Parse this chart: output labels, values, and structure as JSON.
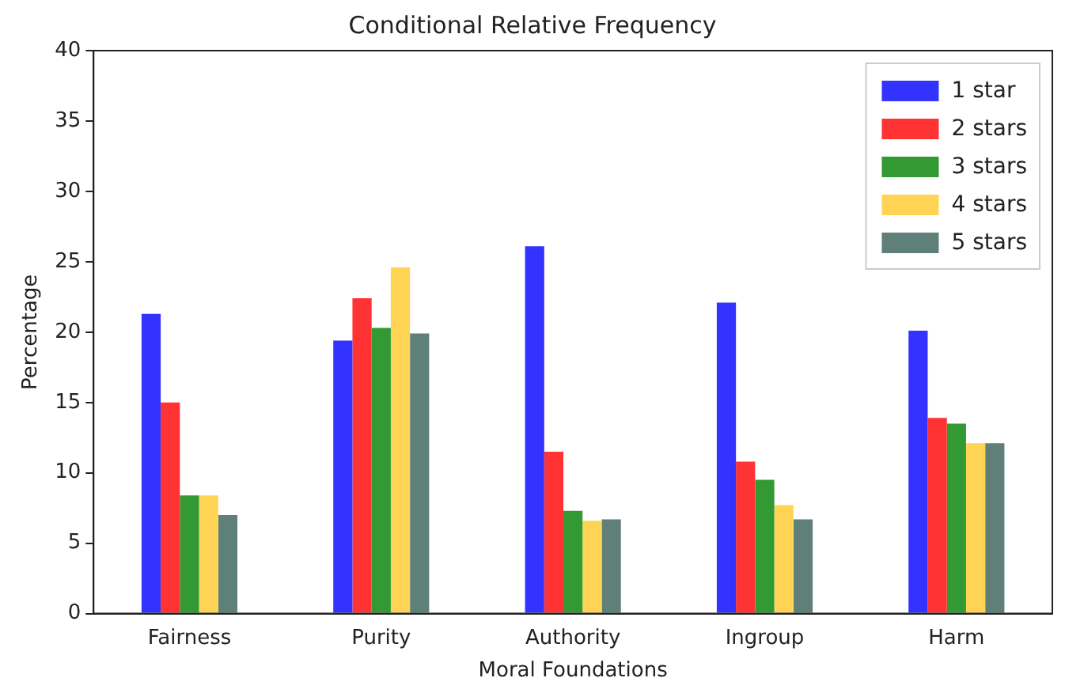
{
  "chart_data": {
    "type": "bar",
    "title": "Conditional Relative Frequency",
    "xlabel": "Moral Foundations",
    "ylabel": "Percentage",
    "categories": [
      "Fairness",
      "Purity",
      "Authority",
      "Ingroup",
      "Harm"
    ],
    "series": [
      {
        "name": "1 star",
        "color": "#3333ff",
        "values": [
          21.3,
          19.4,
          26.1,
          22.1,
          20.1
        ]
      },
      {
        "name": "2 stars",
        "color": "#ff3333",
        "values": [
          15,
          22.4,
          11.5,
          10.8,
          13.9
        ]
      },
      {
        "name": "3 stars",
        "color": "#339933",
        "values": [
          8.4,
          20.3,
          7.3,
          9.5,
          13.5
        ]
      },
      {
        "name": "4 stars",
        "color": "#ffd455",
        "values": [
          8.4,
          24.6,
          6.6,
          7.7,
          12.1
        ]
      },
      {
        "name": "5 stars",
        "color": "#5f7f79",
        "values": [
          7,
          19.9,
          6.7,
          6.7,
          12.1
        ]
      }
    ],
    "ylim": [
      0,
      40
    ],
    "yticks": [
      0,
      5,
      10,
      15,
      20,
      25,
      30,
      35,
      40
    ],
    "grid": false,
    "legend": "top right"
  }
}
